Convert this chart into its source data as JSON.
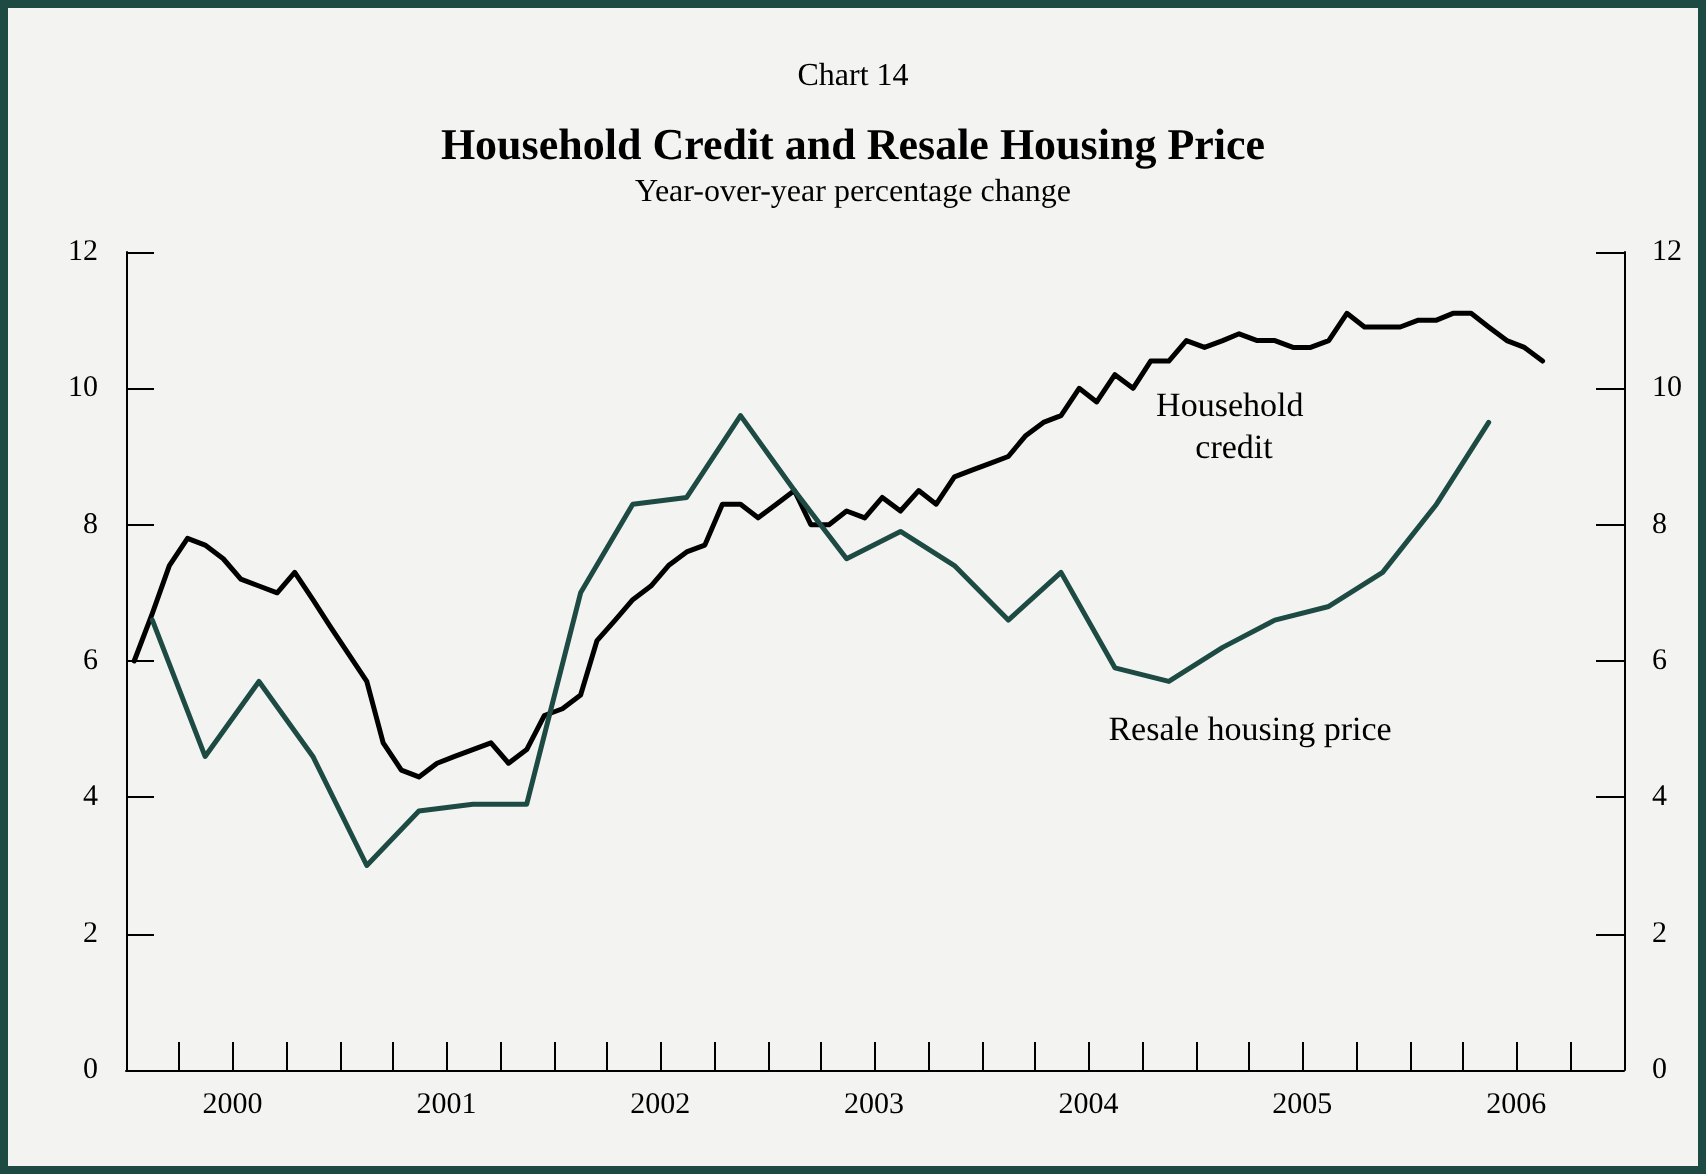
{
  "chart_data": {
    "type": "line",
    "title": "Household Credit and Resale Housing Price",
    "subtitle": "Year-over-year percentage change",
    "annotations": [
      "Chart 14"
    ],
    "xlim": [
      "2000-01",
      "2007-01"
    ],
    "xticks": [
      {
        "value": "2000-04",
        "label": null
      },
      {
        "value": "2000-07",
        "label": "2000"
      },
      {
        "value": "2000-10",
        "label": null
      },
      {
        "value": "2001-01",
        "label": null
      },
      {
        "value": "2001-04",
        "label": null
      },
      {
        "value": "2001-07",
        "label": "2001"
      },
      {
        "value": "2001-10",
        "label": null
      },
      {
        "value": "2002-01",
        "label": null
      },
      {
        "value": "2002-04",
        "label": null
      },
      {
        "value": "2002-07",
        "label": "2002"
      },
      {
        "value": "2002-10",
        "label": null
      },
      {
        "value": "2003-01",
        "label": null
      },
      {
        "value": "2003-04",
        "label": null
      },
      {
        "value": "2003-07",
        "label": "2003"
      },
      {
        "value": "2003-10",
        "label": null
      },
      {
        "value": "2004-01",
        "label": null
      },
      {
        "value": "2004-04",
        "label": null
      },
      {
        "value": "2004-07",
        "label": "2004"
      },
      {
        "value": "2004-10",
        "label": null
      },
      {
        "value": "2005-01",
        "label": null
      },
      {
        "value": "2005-04",
        "label": null
      },
      {
        "value": "2005-07",
        "label": "2005"
      },
      {
        "value": "2005-10",
        "label": null
      },
      {
        "value": "2006-01",
        "label": null
      },
      {
        "value": "2006-04",
        "label": null
      },
      {
        "value": "2006-07",
        "label": "2006"
      },
      {
        "value": "2006-10",
        "label": null
      }
    ],
    "ylim": [
      0,
      12
    ],
    "yticks": [
      0,
      2,
      4,
      6,
      8,
      10,
      12
    ],
    "y2lim": [
      0,
      12
    ],
    "y2ticks": [
      0,
      2,
      4,
      6,
      8,
      10,
      12
    ],
    "marker": "none",
    "line_style": "solid",
    "series": [
      {
        "name": "Household credit",
        "color": "#000000",
        "x": [
          "2000-01-15",
          "2000-02-15",
          "2000-03-15",
          "2000-04-15",
          "2000-05-15",
          "2000-06-15",
          "2000-07-15",
          "2000-08-15",
          "2000-09-15",
          "2000-10-15",
          "2000-11-15",
          "2000-12-15",
          "2001-01-15",
          "2001-02-15",
          "2001-03-15",
          "2001-04-15",
          "2001-05-15",
          "2001-06-15",
          "2001-07-15",
          "2001-08-15",
          "2001-09-15",
          "2001-10-15",
          "2001-11-15",
          "2001-12-15",
          "2002-01-15",
          "2002-02-15",
          "2002-03-15",
          "2002-04-15",
          "2002-05-15",
          "2002-06-15",
          "2002-07-15",
          "2002-08-15",
          "2002-09-15",
          "2002-10-15",
          "2002-11-15",
          "2002-12-15",
          "2003-01-15",
          "2003-02-15",
          "2003-03-15",
          "2003-04-15",
          "2003-05-15",
          "2003-06-15",
          "2003-07-15",
          "2003-08-15",
          "2003-09-15",
          "2003-10-15",
          "2003-11-15",
          "2003-12-15",
          "2004-01-15",
          "2004-02-15",
          "2004-03-15",
          "2004-04-15",
          "2004-05-15",
          "2004-06-15",
          "2004-07-15",
          "2004-08-15",
          "2004-09-15",
          "2004-10-15",
          "2004-11-15",
          "2004-12-15",
          "2005-01-15",
          "2005-02-15",
          "2005-03-15",
          "2005-04-15",
          "2005-05-15",
          "2005-06-15",
          "2005-07-15",
          "2005-08-15",
          "2005-09-15",
          "2005-10-15",
          "2005-11-15",
          "2005-12-15",
          "2006-01-15",
          "2006-02-15",
          "2006-03-15",
          "2006-04-15",
          "2006-05-15",
          "2006-06-15",
          "2006-07-15",
          "2006-08-15"
        ],
        "values": [
          6.0,
          6.7,
          7.4,
          7.8,
          7.7,
          7.5,
          7.2,
          7.1,
          7.0,
          7.3,
          6.9,
          6.5,
          6.1,
          5.7,
          4.8,
          4.4,
          4.3,
          4.5,
          4.6,
          4.7,
          4.8,
          4.5,
          4.7,
          5.2,
          5.3,
          5.5,
          6.3,
          6.6,
          6.9,
          7.1,
          7.4,
          7.6,
          7.7,
          8.3,
          8.3,
          8.1,
          8.3,
          8.5,
          8.0,
          8.0,
          8.2,
          8.1,
          8.4,
          8.2,
          8.5,
          8.3,
          8.7,
          8.8,
          8.9,
          9.0,
          9.3,
          9.5,
          9.6,
          10.0,
          9.8,
          10.2,
          10.0,
          10.4,
          10.4,
          10.7,
          10.6,
          10.7,
          10.8,
          10.7,
          10.7,
          10.6,
          10.6,
          10.7,
          11.1,
          10.9,
          10.9,
          10.9,
          11.0,
          11.0,
          11.1,
          11.1,
          10.9,
          10.7,
          10.6,
          10.4
        ]
      },
      {
        "name": "Resale housing price",
        "color": "#1e4a44",
        "x": [
          "2000-02-15",
          "2000-05-15",
          "2000-08-15",
          "2000-11-15",
          "2001-02-15",
          "2001-05-15",
          "2001-08-15",
          "2001-11-15",
          "2002-02-15",
          "2002-05-15",
          "2002-08-15",
          "2002-11-15",
          "2003-02-15",
          "2003-05-15",
          "2003-08-15",
          "2003-11-15",
          "2004-02-15",
          "2004-05-15",
          "2004-08-15",
          "2004-11-15",
          "2005-02-15",
          "2005-05-15",
          "2005-08-15",
          "2005-11-15",
          "2006-02-15",
          "2006-05-15"
        ],
        "values": [
          6.6,
          4.6,
          5.7,
          4.6,
          3.0,
          3.8,
          3.9,
          3.9,
          7.0,
          8.3,
          8.4,
          9.6,
          8.5,
          7.5,
          7.9,
          7.4,
          6.6,
          7.3,
          5.9,
          5.7,
          6.2,
          6.6,
          6.8,
          7.3,
          8.3,
          9.5
        ]
      }
    ]
  }
}
